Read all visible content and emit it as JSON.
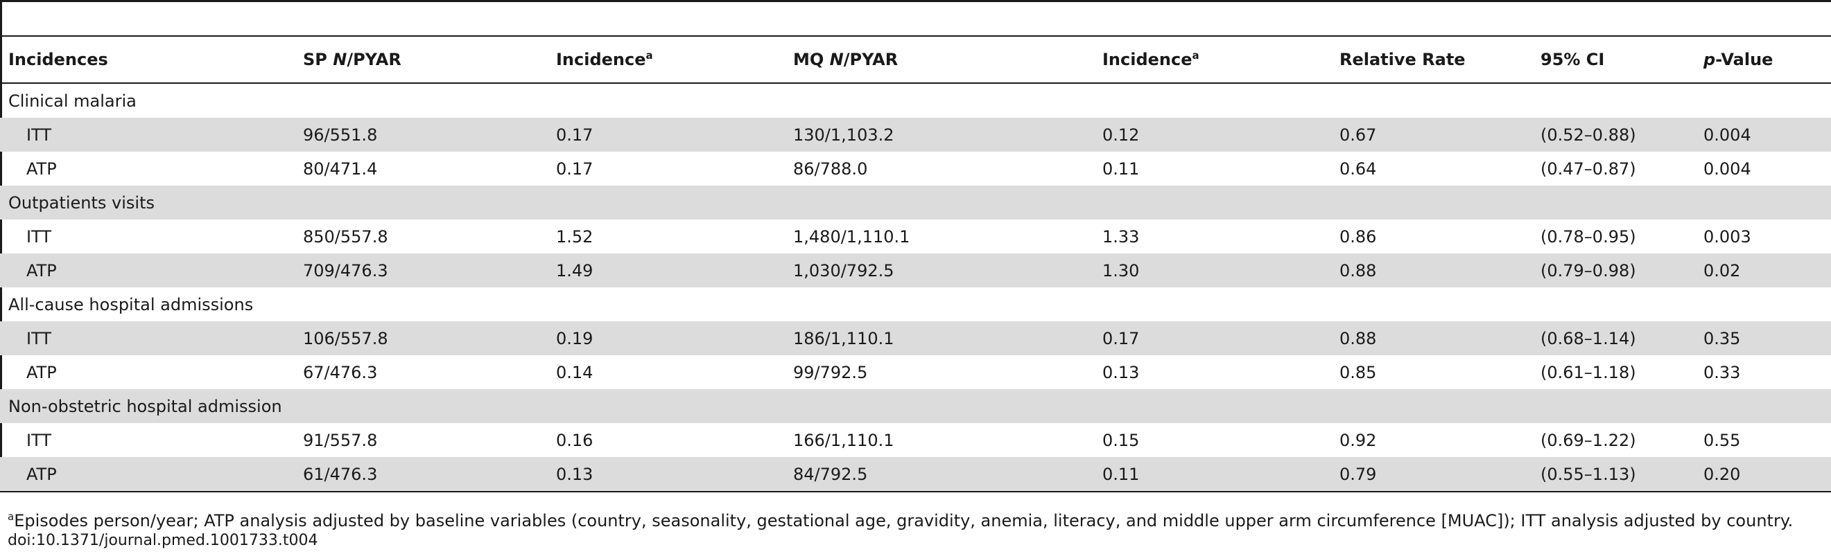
{
  "table": {
    "headers": {
      "incidences": "Incidences",
      "sp_prefix": "SP ",
      "sp_n": "N",
      "sp_suffix": "/PYAR",
      "incidence": "Incidence",
      "incidence_sup": "a",
      "mq_prefix": "MQ ",
      "mq_n": "N",
      "mq_suffix": "/PYAR",
      "incidence2": "Incidence",
      "incidence2_sup": "a",
      "relative_rate": "Relative Rate",
      "ci": "95% CI",
      "p_italic": "p",
      "p_suffix": "-Value"
    },
    "groups": [
      {
        "label": "Clinical malaria",
        "rows": [
          [
            "ITT",
            "96/551.8",
            "0.17",
            "130/1,103.2",
            "0.12",
            "0.67",
            "(0.52–0.88)",
            "0.004"
          ],
          [
            "ATP",
            "80/471.4",
            "0.17",
            "86/788.0",
            "0.11",
            "0.64",
            "(0.47–0.87)",
            "0.004"
          ]
        ]
      },
      {
        "label": "Outpatients visits",
        "rows": [
          [
            "ITT",
            "850/557.8",
            "1.52",
            "1,480/1,110.1",
            "1.33",
            "0.86",
            "(0.78–0.95)",
            "0.003"
          ],
          [
            "ATP",
            "709/476.3",
            "1.49",
            "1,030/792.5",
            "1.30",
            "0.88",
            "(0.79–0.98)",
            "0.02"
          ]
        ]
      },
      {
        "label": "All-cause hospital admissions",
        "rows": [
          [
            "ITT",
            "106/557.8",
            "0.19",
            "186/1,110.1",
            "0.17",
            "0.88",
            "(0.68–1.14)",
            "0.35"
          ],
          [
            "ATP",
            "67/476.3",
            "0.14",
            "99/792.5",
            "0.13",
            "0.85",
            "(0.61–1.18)",
            "0.33"
          ]
        ]
      },
      {
        "label": "Non-obstetric hospital admission",
        "rows": [
          [
            "ITT",
            "91/557.8",
            "0.16",
            "166/1,110.1",
            "0.15",
            "0.92",
            "(0.69–1.22)",
            "0.55"
          ],
          [
            "ATP",
            "61/476.3",
            "0.13",
            "84/792.5",
            "0.11",
            "0.79",
            "(0.55–1.13)",
            "0.20"
          ]
        ]
      }
    ]
  },
  "footnote": {
    "sup": "a",
    "text": "Episodes person/year; ATP analysis adjusted by baseline variables (country, seasonality, gestational age, gravidity, anemia, literacy, and middle upper arm circumference [MUAC]); ITT analysis adjusted by country."
  },
  "doi": "doi:10.1371/journal.pmed.1001733.t004"
}
